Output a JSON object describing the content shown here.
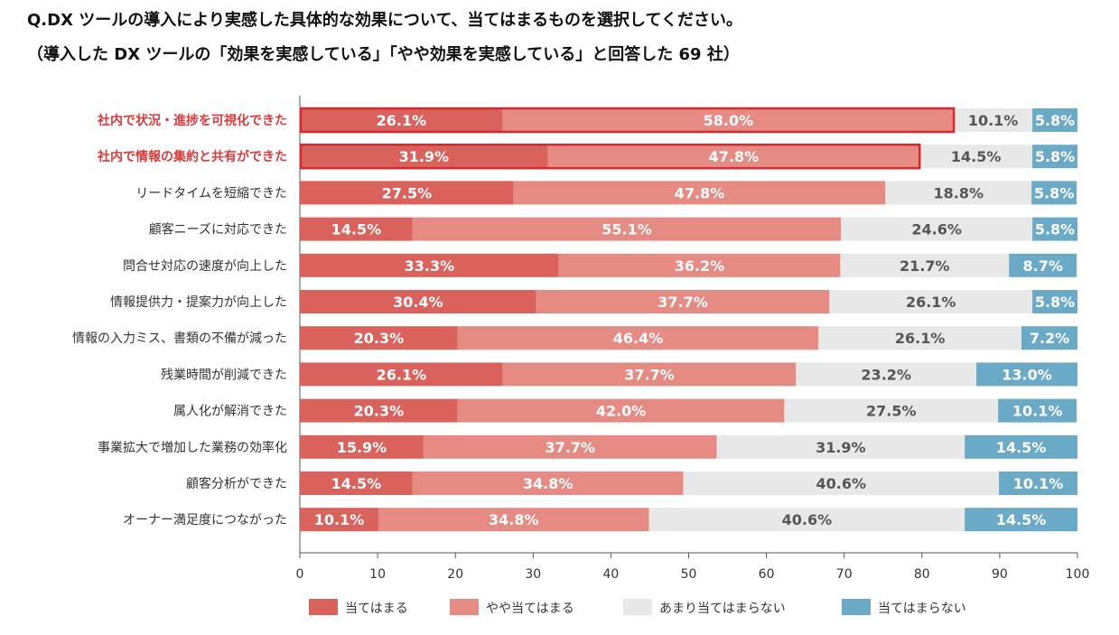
{
  "title": "Q.DX ツールの導入により実感した具体的な効果について、当てはまるものを選択してください。",
  "subtitle": "（導入した DX ツールの「効果を実感している」「やや効果を実感している」と回答した 69 社）",
  "chart_data": {
    "type": "bar",
    "orientation": "horizontal",
    "stacked": true,
    "xlim": [
      0,
      100
    ],
    "xticks": [
      0,
      10,
      20,
      30,
      40,
      50,
      60,
      70,
      80,
      90,
      100
    ],
    "categories": [
      "社内で状況・進捗を可視化できた",
      "社内で情報の集約と共有ができた",
      "リードタイムを短縮できた",
      "顧客ニーズに対応できた",
      "問合せ対応の速度が向上した",
      "情報提供力・提案力が向上した",
      "情報の入力ミス、書類の不備が減った",
      "残業時間が削減できた",
      "属人化が解消できた",
      "事業拡大で増加した業務の効率化",
      "顧客分析ができた",
      "オーナー満足度につながった"
    ],
    "highlighted": [
      0,
      1
    ],
    "series": [
      {
        "name": "当てはまる",
        "color": "#d9625c",
        "values": [
          26.1,
          31.9,
          27.5,
          14.5,
          33.3,
          30.4,
          20.3,
          26.1,
          20.3,
          15.9,
          14.5,
          10.1
        ]
      },
      {
        "name": "やや当てはまる",
        "color": "#e58b84",
        "values": [
          58.0,
          47.8,
          47.8,
          55.1,
          36.2,
          37.7,
          46.4,
          37.7,
          42.0,
          37.7,
          34.8,
          34.8
        ]
      },
      {
        "name": "あまり当てはまらない",
        "color": "#e8e8e8",
        "values": [
          10.1,
          14.5,
          18.8,
          24.6,
          21.7,
          26.1,
          26.1,
          23.2,
          27.5,
          31.9,
          40.6,
          40.6
        ]
      },
      {
        "name": "当てはまらない",
        "color": "#6aaac6",
        "values": [
          5.8,
          5.8,
          5.8,
          5.8,
          8.7,
          5.8,
          7.2,
          13.0,
          10.1,
          14.5,
          10.1,
          14.5
        ]
      }
    ],
    "colors": {
      "highlight_text": "#d93a3a",
      "highlight_border": "#d9282f",
      "text_on_dark": "#ffffff",
      "text_on_light": "#555555",
      "axis": "#555555"
    }
  }
}
